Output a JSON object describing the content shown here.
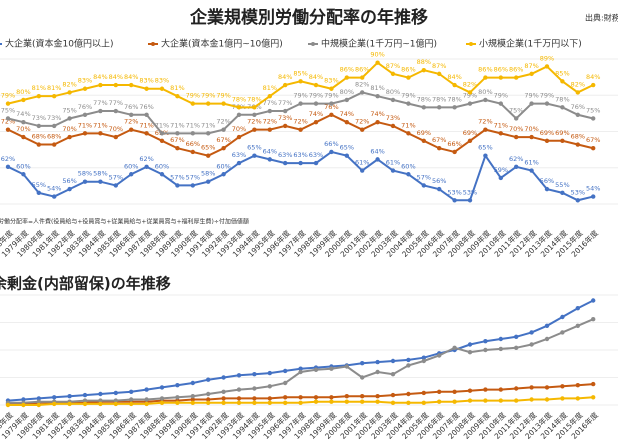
{
  "chart_data": [
    {
      "type": "line",
      "title": "企業規模別労働分配率の年推移",
      "source": "出典:財務省 法人企業統計",
      "note": "労働分配率=人件費(役員給与+役員賞与+従業員給与+従業員賞与+福利厚生費)÷付加価値額",
      "categories": [
        "1978年度",
        "1979年度",
        "1980年度",
        "1981年度",
        "1982年度",
        "1983年度",
        "1984年度",
        "1985年度",
        "1986年度",
        "1987年度",
        "1988年度",
        "1989年度",
        "1990年度",
        "1991年度",
        "1992年度",
        "1993年度",
        "1994年度",
        "1995年度",
        "1996年度",
        "1997年度",
        "1998年度",
        "1999年度",
        "2000年度",
        "2001年度",
        "2002年度",
        "2003年度",
        "2004年度",
        "2005年度",
        "2006年度",
        "2007年度",
        "2008年度",
        "2009年度",
        "2010年度",
        "2011年度",
        "2012年度",
        "2013年度",
        "2014年度",
        "2015年度",
        "2016年度"
      ],
      "ylim": [
        52,
        91
      ],
      "series": [
        {
          "name": "大企業(資本金10億円以上)",
          "color": "#4472c4",
          "values": [
            62,
            60,
            55,
            54,
            56,
            58,
            58,
            57,
            60,
            62,
            60,
            57,
            57,
            58,
            60,
            63,
            65,
            64,
            63,
            63,
            63,
            66,
            65,
            61,
            64,
            61,
            60,
            57,
            56,
            53,
            53,
            65,
            59,
            62,
            61,
            56,
            55,
            53,
            54
          ],
          "value_labels": [
            "62%",
            "60%",
            "55%",
            "54%",
            "56%",
            "58%",
            "58%",
            "57%",
            "60%",
            "62%",
            "60%",
            "57%",
            "57%",
            "58%",
            "60%",
            "63%",
            "65%",
            "64%",
            "63%",
            "63%",
            "63%",
            "66%",
            "65%",
            "61%",
            "64%",
            "61%",
            "60%",
            "57%",
            "56%",
            "53%",
            "53%",
            "65%",
            "59%",
            "62%",
            "61%",
            "56%",
            "55%",
            "53%",
            "54%"
          ]
        },
        {
          "name": "大企業(資本金1億円~10億円)",
          "color": "#c55a11",
          "values": [
            72,
            70,
            68,
            68,
            70,
            71,
            71,
            70,
            72,
            71,
            69,
            67,
            66,
            65,
            67,
            70,
            72,
            72,
            73,
            72,
            74,
            76,
            74,
            72,
            74,
            73,
            71,
            69,
            67,
            66,
            69,
            72,
            71,
            70,
            70,
            69,
            69,
            68,
            67
          ],
          "value_labels": [
            "72%",
            "70%",
            "68%",
            "68%",
            "70%",
            "71%",
            "71%",
            "70%",
            "72%",
            "71%",
            "69%",
            "67%",
            "66%",
            "65%",
            "67%",
            "70%",
            "72%",
            "72%",
            "73%",
            "72%",
            "74%",
            "76%",
            "74%",
            "72%",
            "74%",
            "73%",
            "71%",
            "69%",
            "67%",
            "66%",
            "69%",
            "72%",
            "71%",
            "70%",
            "70%",
            "69%",
            "69%",
            "68%",
            "67%"
          ]
        },
        {
          "name": "中規模企業(1千万円~1億円)",
          "color": "#8c8c8c",
          "values": [
            75,
            74,
            73,
            73,
            75,
            76,
            77,
            77,
            76,
            76,
            71,
            71,
            71,
            71,
            72,
            76,
            76,
            77,
            77,
            79,
            79,
            79,
            80,
            82,
            81,
            80,
            79,
            78,
            78,
            78,
            79,
            80,
            79,
            75,
            79,
            79,
            78,
            76,
            75
          ],
          "value_labels": [
            "75%",
            "74%",
            "73%",
            "73%",
            "75%",
            "76%",
            "77%",
            "77%",
            "76%",
            "76%",
            "71%",
            "71%",
            "71%",
            "71%",
            "72%",
            "76%",
            "76%",
            "77%",
            "77%",
            "79%",
            "79%",
            "79%",
            "80%",
            "82%",
            "81%",
            "80%",
            "79%",
            "78%",
            "78%",
            "78%",
            "79%",
            "80%",
            "79%",
            "75%",
            "79%",
            "79%",
            "78%",
            "76%",
            "75%"
          ]
        },
        {
          "name": "小規模企業(1千万円以下)",
          "color": "#f5b800",
          "values": [
            79,
            80,
            81,
            81,
            82,
            83,
            84,
            84,
            84,
            83,
            83,
            81,
            79,
            79,
            79,
            78,
            78,
            81,
            84,
            85,
            84,
            83,
            86,
            86,
            90,
            87,
            86,
            88,
            87,
            84,
            82,
            86,
            86,
            86,
            87,
            89,
            85,
            82,
            84
          ],
          "value_labels": [
            "79%",
            "80%",
            "81%",
            "81%",
            "82%",
            "83%",
            "84%",
            "84%",
            "84%",
            "83%",
            "83%",
            "81%",
            "79%",
            "79%",
            "79%",
            "78%",
            "78%",
            "81%",
            "84%",
            "85%",
            "84%",
            "83%",
            "86%",
            "86%",
            "90%",
            "87%",
            "86%",
            "88%",
            "87%",
            "84%",
            "82%",
            "86%",
            "86%",
            "86%",
            "87%",
            "89%",
            "85%",
            "82%",
            "84%"
          ]
        }
      ]
    },
    {
      "type": "line",
      "title": "余剰金(内部留保)の年推移",
      "categories": [
        "1978年度",
        "1979年度",
        "1980年度",
        "1981年度",
        "1982年度",
        "1983年度",
        "1984年度",
        "1985年度",
        "1986年度",
        "1987年度",
        "1988年度",
        "1989年度",
        "1990年度",
        "1991年度",
        "1992年度",
        "1993年度",
        "1994年度",
        "1995年度",
        "1996年度",
        "1997年度",
        "1998年度",
        "1999年度",
        "2000年度",
        "2001年度",
        "2002年度",
        "2003年度",
        "2004年度",
        "2005年度",
        "2006年度",
        "2007年度",
        "2008年度",
        "2009年度",
        "2010年度",
        "2011年度",
        "2012年度",
        "2013年度",
        "2014年度",
        "2015年度",
        "2016年度"
      ],
      "ylim": [
        0,
        100
      ],
      "series": [
        {
          "name": "大企業(資本金10億円以上)",
          "color": "#4472c4",
          "values": [
            4,
            5,
            6,
            7,
            8,
            9,
            10,
            11,
            12,
            14,
            16,
            18,
            20,
            23,
            25,
            27,
            28,
            29,
            31,
            33,
            34,
            35,
            36,
            38,
            39,
            40,
            41,
            43,
            47,
            50,
            55,
            58,
            60,
            62,
            66,
            72,
            80,
            88,
            95
          ]
        },
        {
          "name": "大企業(資本金1億円~10億円)",
          "color": "#c55a11",
          "values": [
            1,
            1,
            2,
            2,
            2,
            2,
            3,
            3,
            3,
            3,
            4,
            4,
            5,
            5,
            6,
            6,
            6,
            6,
            7,
            7,
            7,
            7,
            8,
            8,
            8,
            9,
            10,
            11,
            12,
            12,
            13,
            14,
            14,
            15,
            16,
            16,
            17,
            18,
            19
          ]
        },
        {
          "name": "中規模企業(1千万円~1億円)",
          "color": "#8c8c8c",
          "values": [
            2,
            2,
            3,
            3,
            3,
            4,
            4,
            4,
            5,
            5,
            6,
            7,
            8,
            10,
            12,
            14,
            15,
            17,
            20,
            30,
            32,
            33,
            35,
            25,
            30,
            28,
            36,
            40,
            45,
            52,
            48,
            50,
            51,
            52,
            55,
            60,
            66,
            72,
            78
          ]
        },
        {
          "name": "小規模企業(1千万円以下)",
          "color": "#f5b800",
          "values": [
            0,
            0,
            0,
            1,
            1,
            1,
            1,
            1,
            1,
            1,
            2,
            2,
            2,
            2,
            2,
            2,
            2,
            2,
            2,
            2,
            3,
            3,
            3,
            3,
            3,
            2,
            2,
            2,
            3,
            3,
            4,
            4,
            4,
            4,
            5,
            5,
            6,
            6,
            7
          ]
        }
      ]
    }
  ]
}
